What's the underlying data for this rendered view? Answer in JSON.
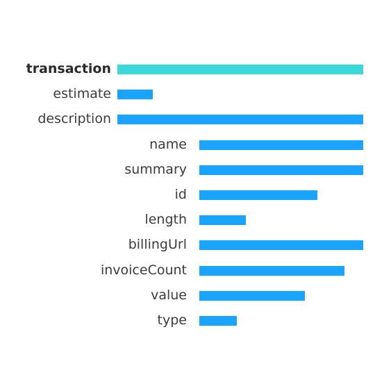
{
  "colors": {
    "highlight_bar": "#3ad9d9",
    "bar": "#1aa3ff"
  },
  "rows": [
    {
      "label": "transaction",
      "bold": true,
      "level": 0,
      "value": 1.0,
      "highlight": true
    },
    {
      "label": "estimate",
      "bold": false,
      "level": 0,
      "value": 0.145
    },
    {
      "label": "description",
      "bold": false,
      "level": 0,
      "value": 1.0
    },
    {
      "label": "name",
      "bold": false,
      "level": 1,
      "value": 1.0
    },
    {
      "label": "summary",
      "bold": false,
      "level": 1,
      "value": 1.0
    },
    {
      "label": "id",
      "bold": false,
      "level": 1,
      "value": 0.72
    },
    {
      "label": "length",
      "bold": false,
      "level": 1,
      "value": 0.285
    },
    {
      "label": "billingUrl",
      "bold": false,
      "level": 1,
      "value": 1.0
    },
    {
      "label": "invoiceCount",
      "bold": false,
      "level": 1,
      "value": 0.885
    },
    {
      "label": "value",
      "bold": false,
      "level": 1,
      "value": 0.645
    },
    {
      "label": "type",
      "bold": false,
      "level": 1,
      "value": 0.23
    }
  ]
}
